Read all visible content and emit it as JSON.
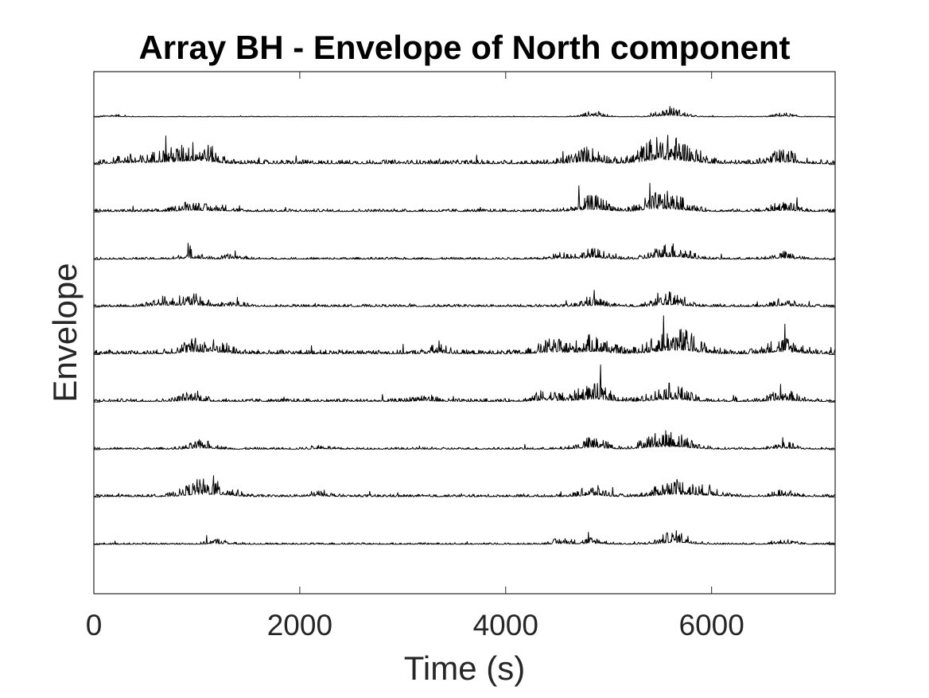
{
  "chart_data": {
    "type": "line",
    "title": "Array BH - Envelope of North component",
    "xlabel": "Time (s)",
    "ylabel": "Envelope",
    "xlim": [
      0,
      7200
    ],
    "xticks": [
      0,
      2000,
      4000,
      6000
    ],
    "xtick_labels": [
      "0",
      "2000",
      "4000",
      "6000"
    ],
    "yticks": [],
    "grid": false,
    "legend": "none",
    "line_color": "#000000",
    "trace_count": 10,
    "series": [
      {
        "activity": [
          [
            190,
            0.15
          ],
          [
            4850,
            0.35
          ],
          [
            5600,
            0.6
          ],
          [
            6700,
            0.25
          ]
        ],
        "noise": 0.05
      },
      {
        "activity": [
          [
            320,
            0.4
          ],
          [
            640,
            0.6
          ],
          [
            940,
            1.0
          ],
          [
            1100,
            0.55
          ],
          [
            4800,
            0.9
          ],
          [
            5400,
            0.8
          ],
          [
            5650,
            1.4
          ],
          [
            6700,
            0.7
          ]
        ],
        "noise": 0.3
      },
      {
        "activity": [
          [
            950,
            0.6
          ],
          [
            1250,
            0.3
          ],
          [
            4850,
            0.9
          ],
          [
            5400,
            0.5
          ],
          [
            5600,
            1.0
          ],
          [
            6700,
            0.5
          ]
        ],
        "noise": 0.2
      },
      {
        "activity": [
          [
            950,
            0.4
          ],
          [
            1350,
            0.25
          ],
          [
            4550,
            0.35
          ],
          [
            4850,
            0.6
          ],
          [
            5600,
            1.0
          ],
          [
            6700,
            0.4
          ]
        ],
        "noise": 0.15
      },
      {
        "activity": [
          [
            650,
            0.5
          ],
          [
            950,
            0.7
          ],
          [
            1350,
            0.3
          ],
          [
            4850,
            0.5
          ],
          [
            5600,
            0.8
          ],
          [
            6700,
            0.4
          ]
        ],
        "noise": 0.18
      },
      {
        "activity": [
          [
            950,
            0.7
          ],
          [
            1200,
            0.6
          ],
          [
            3350,
            0.4
          ],
          [
            4450,
            0.7
          ],
          [
            4850,
            1.0
          ],
          [
            5650,
            1.5
          ],
          [
            6700,
            0.9
          ]
        ],
        "noise": 0.3
      },
      {
        "activity": [
          [
            950,
            0.5
          ],
          [
            3200,
            0.35
          ],
          [
            4400,
            0.6
          ],
          [
            4850,
            1.0
          ],
          [
            5600,
            1.0
          ],
          [
            6700,
            0.6
          ]
        ],
        "noise": 0.22
      },
      {
        "activity": [
          [
            1050,
            0.5
          ],
          [
            2200,
            0.2
          ],
          [
            4850,
            0.7
          ],
          [
            5400,
            0.6
          ],
          [
            5650,
            1.0
          ],
          [
            6700,
            0.4
          ]
        ],
        "noise": 0.15
      },
      {
        "activity": [
          [
            1050,
            1.0
          ],
          [
            1300,
            0.4
          ],
          [
            2200,
            0.3
          ],
          [
            4850,
            0.6
          ],
          [
            5650,
            1.1
          ],
          [
            6000,
            0.5
          ],
          [
            6700,
            0.35
          ]
        ],
        "noise": 0.18
      },
      {
        "activity": [
          [
            1200,
            0.3
          ],
          [
            4550,
            0.35
          ],
          [
            4850,
            0.4
          ],
          [
            5650,
            0.8
          ],
          [
            6700,
            0.3
          ]
        ],
        "noise": 0.12
      }
    ]
  }
}
